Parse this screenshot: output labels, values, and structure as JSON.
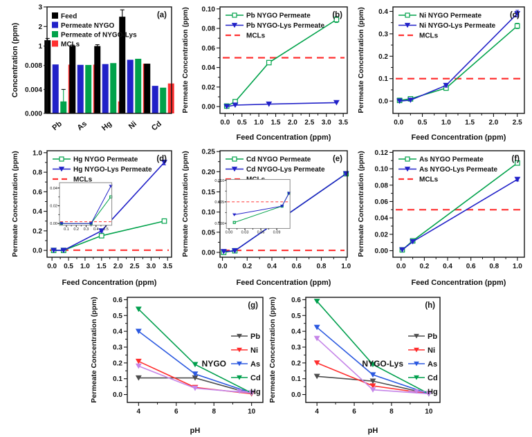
{
  "colors": {
    "feed_black": "#000000",
    "nygo_green": "#00A24A",
    "nygo_lys_blue": "#2121C8",
    "mcl_red": "#FF3030",
    "pb_gray": "#4D4D4D",
    "ni_red": "#FF2D2D",
    "as_blue": "#2B59E0",
    "cd_green": "#009F4D",
    "hg_purple": "#C585E8",
    "axis": "#111111"
  },
  "chart_data": [
    {
      "id": "a",
      "type": "bar",
      "panel_label": "(a)",
      "ylabel": "Concentration (ppm)",
      "categories": [
        "Pb",
        "As",
        "Hg",
        "Ni",
        "Cd"
      ],
      "axis_break": {
        "lower_max": 0.008,
        "upper_max": 3,
        "lower_ticks": [
          0,
          0.004,
          0.008
        ],
        "lower_tick_labels": [
          "0.000",
          "0.004",
          "0.008"
        ],
        "upper_ticks": [
          1,
          2,
          3
        ],
        "upper_tick_labels": [
          "1",
          "2",
          "3"
        ]
      },
      "legend_position": "top-left",
      "series": [
        {
          "name": "Feed",
          "color": "feed_black",
          "values": [
            1.3,
            1.0,
            1.0,
            2.5,
            0.1
          ],
          "errors": [
            0.09,
            0.05,
            0.07,
            0.35,
            0
          ]
        },
        {
          "name": "Permeate NYGO",
          "color": "nygo_lys_blue",
          "values": [
            0.06,
            0.04,
            0.08,
            0.3,
            0.0046
          ],
          "errors": [
            0,
            0,
            0,
            0,
            0
          ]
        },
        {
          "name": "Permeate of NYGO-Lys",
          "color": "nygo_green",
          "values": [
            0.002,
            0.035,
            0.13,
            0.35,
            0.0043
          ],
          "errors": [
            0.002,
            0,
            0,
            0,
            0
          ]
        },
        {
          "name": "MCLs",
          "color": "mcl_red",
          "values": [
            0.05,
            0.05,
            0.002,
            0.1,
            0.005
          ],
          "errors": [
            0,
            0,
            0,
            0,
            0
          ]
        }
      ]
    },
    {
      "id": "b",
      "type": "line",
      "panel_label": "(b)",
      "xlabel": "Feed Concentration (ppm)",
      "ylabel": "Permeate Concentration (ppm)",
      "xlim": [
        -0.15,
        3.62
      ],
      "ylim": [
        -0.007,
        0.102
      ],
      "xticks": [
        0.0,
        0.5,
        1.0,
        1.5,
        2.0,
        2.5,
        3.0,
        3.5
      ],
      "xtick_decimals": 1,
      "yticks": [
        0.0,
        0.02,
        0.04,
        0.06,
        0.08,
        0.1
      ],
      "ytick_decimals": 2,
      "mcl": 0.05,
      "mcl_label": "MCLs",
      "legend_position": "top-left",
      "series": [
        {
          "name": "Pb NYGO Permeate",
          "color": "nygo_green",
          "marker": "square-open",
          "x": [
            0.05,
            0.3,
            1.3,
            3.3
          ],
          "y": [
            0.0005,
            0.005,
            0.045,
            0.089
          ],
          "yerr": [
            0,
            0,
            0.002,
            0.003
          ]
        },
        {
          "name": "Pb NYGO-Lys Permeate",
          "color": "nygo_lys_blue",
          "marker": "triangle-down",
          "x": [
            0.05,
            0.3,
            1.3,
            3.3
          ],
          "y": [
            0.0,
            0.0015,
            0.0025,
            0.004
          ],
          "yerr": [
            0,
            0,
            0,
            0
          ]
        }
      ]
    },
    {
      "id": "c",
      "type": "line",
      "panel_label": "(c)",
      "xlabel": "Feed Concentration (ppm)",
      "ylabel": "Permeate Concentration (ppm)",
      "xlim": [
        -0.12,
        2.65
      ],
      "ylim": [
        -0.055,
        0.42
      ],
      "xticks": [
        0.0,
        0.5,
        1.0,
        1.5,
        2.0,
        2.5
      ],
      "xtick_decimals": 1,
      "yticks": [
        0.0,
        0.1,
        0.2,
        0.3,
        0.4
      ],
      "ytick_decimals": 1,
      "mcl": 0.1,
      "mcl_label": "MCLs",
      "legend_position": "top-left",
      "series": [
        {
          "name": "Ni NYGO Permeate",
          "color": "nygo_green",
          "marker": "square-open",
          "x": [
            0.02,
            0.25,
            1.0,
            2.5
          ],
          "y": [
            0.003,
            0.01,
            0.058,
            0.335
          ],
          "yerr": [
            0,
            0,
            0,
            0.012
          ]
        },
        {
          "name": "Ni NYGO-Lys Permeate",
          "color": "nygo_lys_blue",
          "marker": "triangle-down",
          "x": [
            0.02,
            0.25,
            1.0,
            2.5
          ],
          "y": [
            0.0,
            0.004,
            0.07,
            0.39
          ],
          "yerr": [
            0,
            0,
            0.008,
            0.015
          ]
        }
      ]
    },
    {
      "id": "d",
      "type": "line",
      "panel_label": "(d)",
      "xlabel": "Feed Concentration (ppm)",
      "ylabel": "Permeate Concentration (ppm)",
      "xlim": [
        -0.15,
        3.62
      ],
      "ylim": [
        -0.07,
        1.02
      ],
      "xticks": [
        0.0,
        0.5,
        1.0,
        1.5,
        2.0,
        2.5,
        3.0,
        3.5
      ],
      "xtick_decimals": 1,
      "yticks": [
        0.0,
        0.2,
        0.4,
        0.6,
        0.8,
        1.0
      ],
      "ytick_decimals": 1,
      "mcl": 0.002,
      "mcl_label": "MCLs",
      "legend_position": "top-left",
      "series": [
        {
          "name": "Hg NYGO Permeate",
          "color": "nygo_green",
          "marker": "square-open",
          "x": [
            0.05,
            0.35,
            1.5,
            3.4
          ],
          "y": [
            0.0,
            0.0,
            0.15,
            0.3
          ],
          "yerr": [
            0,
            0,
            0.012,
            0.02
          ]
        },
        {
          "name": "Hg NYGO-Lys Permeate",
          "color": "nygo_lys_blue",
          "marker": "triangle-down",
          "x": [
            0.05,
            0.35,
            1.5,
            3.4
          ],
          "y": [
            0.0,
            0.0,
            0.2,
            0.9
          ],
          "yerr": [
            0,
            0,
            0.015,
            0.025
          ]
        }
      ],
      "inset": {
        "fx": 0.1,
        "fy": 0.3,
        "fw": 0.42,
        "fh": 0.4,
        "xlim": [
          0.03,
          0.56
        ],
        "ylim": [
          -0.002,
          0.046
        ],
        "xticks": [
          0.1,
          0.2,
          0.3,
          0.4,
          0.5
        ],
        "xtick_decimals": 1,
        "yticks": [
          0.0,
          0.02,
          0.04
        ],
        "ytick_decimals": 2,
        "mcl": 0.002,
        "series": [
          {
            "color": "nygo_green",
            "marker": "square-open",
            "x": [
              0.05,
              0.35,
              0.55
            ],
            "y": [
              0.0,
              0.0,
              0.03
            ]
          },
          {
            "color": "nygo_lys_blue",
            "marker": "triangle-down",
            "x": [
              0.05,
              0.35,
              0.55
            ],
            "y": [
              0.0,
              0.0,
              0.042
            ]
          }
        ]
      }
    },
    {
      "id": "e",
      "type": "line",
      "panel_label": "(e)",
      "xlabel": "Feed Concentration (ppm)",
      "ylabel": "Permeate Concentration (ppm)",
      "xlim": [
        -0.02,
        1.01
      ],
      "ylim": [
        -0.012,
        0.252
      ],
      "xticks": [
        0.0,
        0.2,
        0.4,
        0.6,
        0.8,
        1.0
      ],
      "xtick_decimals": 1,
      "yticks": [
        0.0,
        0.05,
        0.1,
        0.15,
        0.2,
        0.25
      ],
      "ytick_decimals": 2,
      "mcl": 0.005,
      "mcl_label": "MCLs",
      "legend_position": "top-left",
      "series": [
        {
          "name": "Cd NYGO Permeate",
          "color": "nygo_green",
          "marker": "square-open",
          "x": [
            0.01,
            0.1,
            1.0
          ],
          "y": [
            0.0,
            0.004,
            0.195
          ],
          "yerr": [
            0,
            0,
            0
          ]
        },
        {
          "name": "Cd NYGO-Lys Permeate",
          "color": "nygo_lys_blue",
          "marker": "triangle-down",
          "x": [
            0.01,
            0.1,
            1.0
          ],
          "y": [
            0.002,
            0.004,
            0.195
          ],
          "yerr": [
            0,
            0,
            0
          ]
        }
      ],
      "inset": {
        "fx": 0.05,
        "fy": 0.27,
        "fw": 0.5,
        "fh": 0.46,
        "xlim": [
          -0.005,
          0.115
        ],
        "ylim": [
          -0.0012,
          0.0102
        ],
        "xticks": [
          0.0,
          0.03,
          0.06,
          0.09
        ],
        "xtick_decimals": 2,
        "yticks": [
          0.0,
          0.005,
          0.01
        ],
        "ytick_decimals": 3,
        "mcl": 0.005,
        "series": [
          {
            "color": "nygo_green",
            "marker": "square-open",
            "x": [
              0.01,
              0.1,
              0.113
            ],
            "y": [
              0.0002,
              0.004,
              0.007
            ]
          },
          {
            "color": "nygo_lys_blue",
            "marker": "triangle-down",
            "x": [
              0.01,
              0.1,
              0.113
            ],
            "y": [
              0.002,
              0.004,
              0.007
            ]
          }
        ]
      }
    },
    {
      "id": "f",
      "type": "line",
      "panel_label": "(f)",
      "xlabel": "Feed Concentration (ppm)",
      "ylabel": "Permeate Concentration (ppm)",
      "xlim": [
        -0.07,
        1.06
      ],
      "ylim": [
        -0.008,
        0.122
      ],
      "xticks": [
        0.0,
        0.2,
        0.4,
        0.6,
        0.8,
        1.0
      ],
      "xtick_decimals": 1,
      "yticks": [
        0.0,
        0.02,
        0.04,
        0.06,
        0.08,
        0.1,
        0.12
      ],
      "ytick_decimals": 2,
      "mcl": 0.05,
      "mcl_label": "MCLs",
      "legend_position": "top-left",
      "series": [
        {
          "name": "As NYGO Permeate",
          "color": "nygo_green",
          "marker": "square-open",
          "x": [
            0.01,
            0.1,
            1.0
          ],
          "y": [
            0.001,
            0.012,
            0.107
          ],
          "yerr": [
            0,
            0,
            0.002
          ]
        },
        {
          "name": "As NYGO-Lys Permeate",
          "color": "nygo_lys_blue",
          "marker": "triangle-down",
          "x": [
            0.01,
            0.1,
            1.0
          ],
          "y": [
            0.001,
            0.011,
            0.087
          ],
          "yerr": [
            0,
            0,
            0.002
          ]
        }
      ]
    },
    {
      "id": "g",
      "type": "line",
      "panel_label": "(g)",
      "xlabel": "pH",
      "ylabel": "Permeate Concentration (ppm)",
      "xlim": [
        3.4,
        10.6
      ],
      "ylim": [
        -0.05,
        0.615
      ],
      "xticks": [
        4,
        6,
        8,
        10
      ],
      "xtick_decimals": 0,
      "yticks": [
        0.0,
        0.1,
        0.2,
        0.3,
        0.4,
        0.5,
        0.6
      ],
      "ytick_decimals": 1,
      "group_label": "NYGO",
      "legend_position": "right",
      "series": [
        {
          "name": "Pb",
          "color": "pb_gray",
          "marker": "triangle-down",
          "x": [
            4,
            7,
            10
          ],
          "y": [
            0.105,
            0.105,
            0.005
          ]
        },
        {
          "name": "Ni",
          "color": "ni_red",
          "marker": "triangle-down",
          "x": [
            4,
            7,
            10
          ],
          "y": [
            0.21,
            0.045,
            0.005
          ]
        },
        {
          "name": "As",
          "color": "as_blue",
          "marker": "triangle-down",
          "x": [
            4,
            7,
            10
          ],
          "y": [
            0.4,
            0.13,
            0.01
          ]
        },
        {
          "name": "Cd",
          "color": "cd_green",
          "marker": "triangle-down",
          "x": [
            4,
            7,
            10
          ],
          "y": [
            0.54,
            0.19,
            0.01
          ]
        },
        {
          "name": "Hg",
          "color": "hg_purple",
          "marker": "triangle-down",
          "x": [
            4,
            7,
            10
          ],
          "y": [
            0.18,
            0.04,
            0.01
          ]
        }
      ]
    },
    {
      "id": "h",
      "type": "line",
      "panel_label": "(h)",
      "xlabel": "pH",
      "ylabel": "Permeate Concentration (ppm)",
      "xlim": [
        3.4,
        10.6
      ],
      "ylim": [
        -0.05,
        0.615
      ],
      "xticks": [
        4,
        6,
        8,
        10
      ],
      "xtick_decimals": 0,
      "yticks": [
        0.0,
        0.1,
        0.2,
        0.3,
        0.4,
        0.5,
        0.6
      ],
      "ytick_decimals": 1,
      "group_label": "NYGO-Lys",
      "legend_position": "right",
      "series": [
        {
          "name": "Pb",
          "color": "pb_gray",
          "marker": "triangle-down",
          "x": [
            4,
            7,
            10
          ],
          "y": [
            0.115,
            0.085,
            0.005
          ]
        },
        {
          "name": "Ni",
          "color": "ni_red",
          "marker": "triangle-down",
          "x": [
            4,
            7,
            10
          ],
          "y": [
            0.2,
            0.055,
            0.005
          ]
        },
        {
          "name": "As",
          "color": "as_blue",
          "marker": "triangle-down",
          "x": [
            4,
            7,
            10
          ],
          "y": [
            0.425,
            0.125,
            0.005
          ]
        },
        {
          "name": "Cd",
          "color": "cd_green",
          "marker": "triangle-down",
          "x": [
            4,
            7,
            10
          ],
          "y": [
            0.59,
            0.19,
            0.005
          ]
        },
        {
          "name": "Hg",
          "color": "hg_purple",
          "marker": "triangle-down",
          "x": [
            4,
            7,
            10
          ],
          "y": [
            0.355,
            0.03,
            0.005
          ]
        }
      ]
    }
  ]
}
